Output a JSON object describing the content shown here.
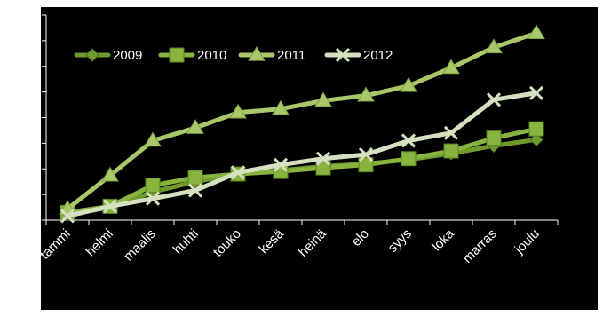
{
  "chart_data": {
    "type": "line",
    "categories": [
      "tammi",
      "helmi",
      "maalis",
      "huhti",
      "touko",
      "kesä",
      "heinä",
      "elo",
      "syys",
      "loka",
      "marras",
      "joulu"
    ],
    "series": [
      {
        "name": "2009",
        "color": "#6e9a2e",
        "marker": "diamond",
        "values": [
          10,
          25,
          55,
          75,
          90,
          97,
          105,
          110,
          118,
          130,
          145,
          157
        ]
      },
      {
        "name": "2010",
        "color": "#88b33e",
        "marker": "square",
        "values": [
          15,
          27,
          68,
          83,
          90,
          95,
          102,
          108,
          120,
          135,
          160,
          178
        ]
      },
      {
        "name": "2011",
        "color": "#a8c86a",
        "marker": "triangle",
        "values": [
          22,
          87,
          155,
          180,
          210,
          217,
          233,
          243,
          262,
          297,
          337,
          365
        ]
      },
      {
        "name": "2012",
        "color": "#d4e0c0",
        "marker": "x",
        "values": [
          8,
          27,
          42,
          58,
          93,
          108,
          120,
          128,
          155,
          170,
          235,
          248
        ]
      }
    ],
    "yticks": [
      0,
      50,
      100,
      150,
      200,
      250,
      300,
      350,
      400
    ],
    "ylim": [
      0,
      400
    ],
    "grid": false,
    "legend": "top-left"
  }
}
